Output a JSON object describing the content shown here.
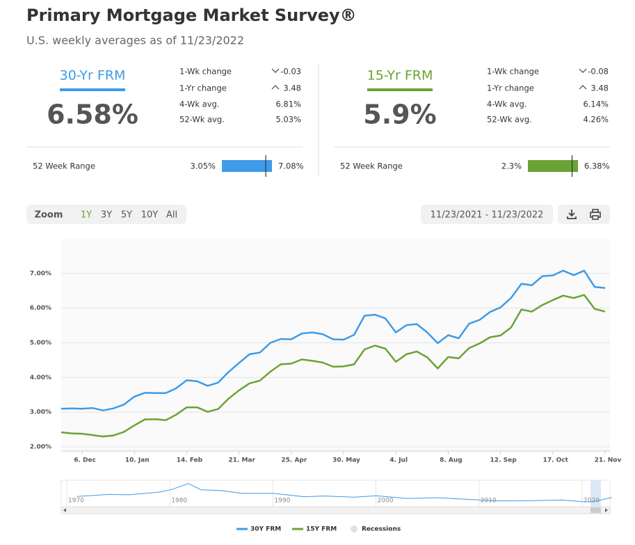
{
  "header": {
    "title": "Primary Mortgage Market Survey®",
    "subtitle": "U.S. weekly averages as of 11/23/2022"
  },
  "cards": [
    {
      "name": "30-Yr FRM",
      "color": "#3d9be9",
      "rate": {
        "value": 6.58,
        "label": "6.58%"
      },
      "stats": [
        {
          "label": "1-Wk change",
          "value": "-0.03"
        },
        {
          "label": "1-Yr change",
          "value": "3.48"
        },
        {
          "label": "4-Wk avg.",
          "value": "6.81%"
        },
        {
          "label": "52-Wk avg.",
          "value": "5.03%"
        }
      ],
      "range": {
        "label": "52 Week Range",
        "low": {
          "value": 3.05,
          "label": "3.05%"
        },
        "high": {
          "value": 7.08,
          "label": "7.08%"
        }
      }
    },
    {
      "name": "15-Yr FRM",
      "color": "#6aa334",
      "rate": {
        "value": 5.9,
        "label": "5.9%"
      },
      "stats": [
        {
          "label": "1-Wk change",
          "value": "-0.08"
        },
        {
          "label": "1-Yr change",
          "value": "3.48"
        },
        {
          "label": "4-Wk avg.",
          "value": "6.14%"
        },
        {
          "label": "52-Wk avg.",
          "value": "4.26%"
        }
      ],
      "range": {
        "label": "52 Week Range",
        "low": {
          "value": 2.3,
          "label": "2.3%"
        },
        "high": {
          "value": 6.38,
          "label": "6.38%"
        }
      }
    }
  ],
  "toolbar": {
    "zoom": "Zoom",
    "buttons": [
      "1Y",
      "3Y",
      "5Y",
      "10Y",
      "All"
    ],
    "date_range": "11/23/2021 - 11/23/2022"
  },
  "chart_data": {
    "type": "line",
    "categories": [
      null,
      null,
      "6. Dec",
      null,
      null,
      null,
      null,
      "10. Jan",
      null,
      null,
      null,
      null,
      "14. Feb",
      null,
      null,
      null,
      null,
      "21. Mar",
      null,
      null,
      null,
      null,
      "25. Apr",
      null,
      null,
      null,
      null,
      "30. May",
      null,
      null,
      null,
      null,
      "4. Jul",
      null,
      null,
      null,
      null,
      "8. Aug",
      null,
      null,
      null,
      null,
      "12. Sep",
      null,
      null,
      null,
      null,
      "17. Oct",
      null,
      null,
      null,
      null,
      "21. Nov"
    ],
    "series": [
      {
        "name": "30Y FRM",
        "color": "#3d9be9",
        "values": [
          3.1,
          3.11,
          3.1,
          3.12,
          3.05,
          3.11,
          3.22,
          3.45,
          3.56,
          3.55,
          3.55,
          3.69,
          3.92,
          3.89,
          3.76,
          3.85,
          4.16,
          4.42,
          4.67,
          4.72,
          5.0,
          5.11,
          5.1,
          5.27,
          5.3,
          5.25,
          5.1,
          5.09,
          5.23,
          5.78,
          5.81,
          5.7,
          5.3,
          5.51,
          5.54,
          5.3,
          4.99,
          5.22,
          5.13,
          5.55,
          5.66,
          5.89,
          6.02,
          6.29,
          6.7,
          6.66,
          6.92,
          6.94,
          7.08,
          6.95,
          7.08,
          6.61,
          6.58
        ]
      },
      {
        "name": "15Y FRM",
        "color": "#6aa334",
        "values": [
          2.42,
          2.39,
          2.38,
          2.34,
          2.3,
          2.33,
          2.43,
          2.62,
          2.79,
          2.8,
          2.77,
          2.93,
          3.14,
          3.14,
          3.01,
          3.09,
          3.39,
          3.63,
          3.83,
          3.91,
          4.17,
          4.38,
          4.4,
          4.52,
          4.48,
          4.43,
          4.31,
          4.32,
          4.38,
          4.81,
          4.92,
          4.83,
          4.45,
          4.67,
          4.75,
          4.58,
          4.26,
          4.59,
          4.55,
          4.85,
          4.98,
          5.16,
          5.21,
          5.44,
          5.96,
          5.9,
          6.09,
          6.23,
          6.36,
          6.29,
          6.38,
          5.98,
          5.9
        ]
      }
    ],
    "ylim": [
      1.88,
      8.0
    ],
    "yticks": [
      {
        "value": 2,
        "label": "2.00%"
      },
      {
        "value": 3,
        "label": "3.00%"
      },
      {
        "value": 4,
        "label": "4.00%"
      },
      {
        "value": 5,
        "label": "5.00%"
      },
      {
        "value": 6,
        "label": "6.00%"
      },
      {
        "value": 7,
        "label": "7.00%"
      }
    ],
    "grid": true,
    "recessions_legend": "Recessions"
  },
  "navigator": {
    "color": "#3d9be9",
    "x": [
      1971,
      1974,
      1976,
      1979,
      1980.3,
      1981.8,
      1983,
      1985,
      1987,
      1990,
      1993,
      1995,
      1998,
      2000,
      2003,
      2006,
      2009,
      2012,
      2015,
      2018,
      2020,
      2021,
      2022.2,
      2022.9
    ],
    "values": [
      7.5,
      9.2,
      8.9,
      11.2,
      13.7,
      18.4,
      13.2,
      12.4,
      10.2,
      10.1,
      7.3,
      7.9,
      6.9,
      8.1,
      5.8,
      6.4,
      5.0,
      3.7,
      3.9,
      4.5,
      3.1,
      3.0,
      5.3,
      6.6
    ],
    "xlim": [
      1969.46,
      2022.7
    ],
    "ylim": [
      0,
      20
    ],
    "xticks": [
      1970,
      1980,
      1990,
      2000,
      2010,
      2020
    ]
  }
}
